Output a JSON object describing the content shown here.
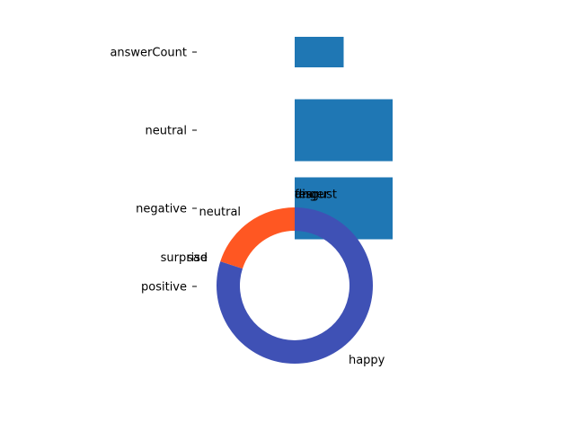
{
  "chart_data": [
    {
      "type": "bar",
      "orientation": "horizontal",
      "categories": [
        "positive",
        "negative",
        "neutral",
        "answerCount"
      ],
      "values": [
        0,
        1,
        1,
        0.5
      ],
      "xlim": [
        0,
        1
      ],
      "colors": [
        "#1f77b4"
      ],
      "grid": false,
      "legend": "none"
    },
    {
      "type": "pie",
      "style": "donut",
      "labels": [
        "happy",
        "surprise",
        "sad",
        "neutral",
        "anger",
        "disgust",
        "fear"
      ],
      "values": [
        0.8,
        0.0,
        0.0,
        0.2,
        0.0,
        0.0,
        0.0
      ],
      "colors": [
        "#3f51b5",
        "#ff5722",
        "#ff5722",
        "#ff5722",
        "#ff5722",
        "#ff5722",
        "#ff5722"
      ],
      "start_angle": 90,
      "direction": "clockwise"
    }
  ]
}
